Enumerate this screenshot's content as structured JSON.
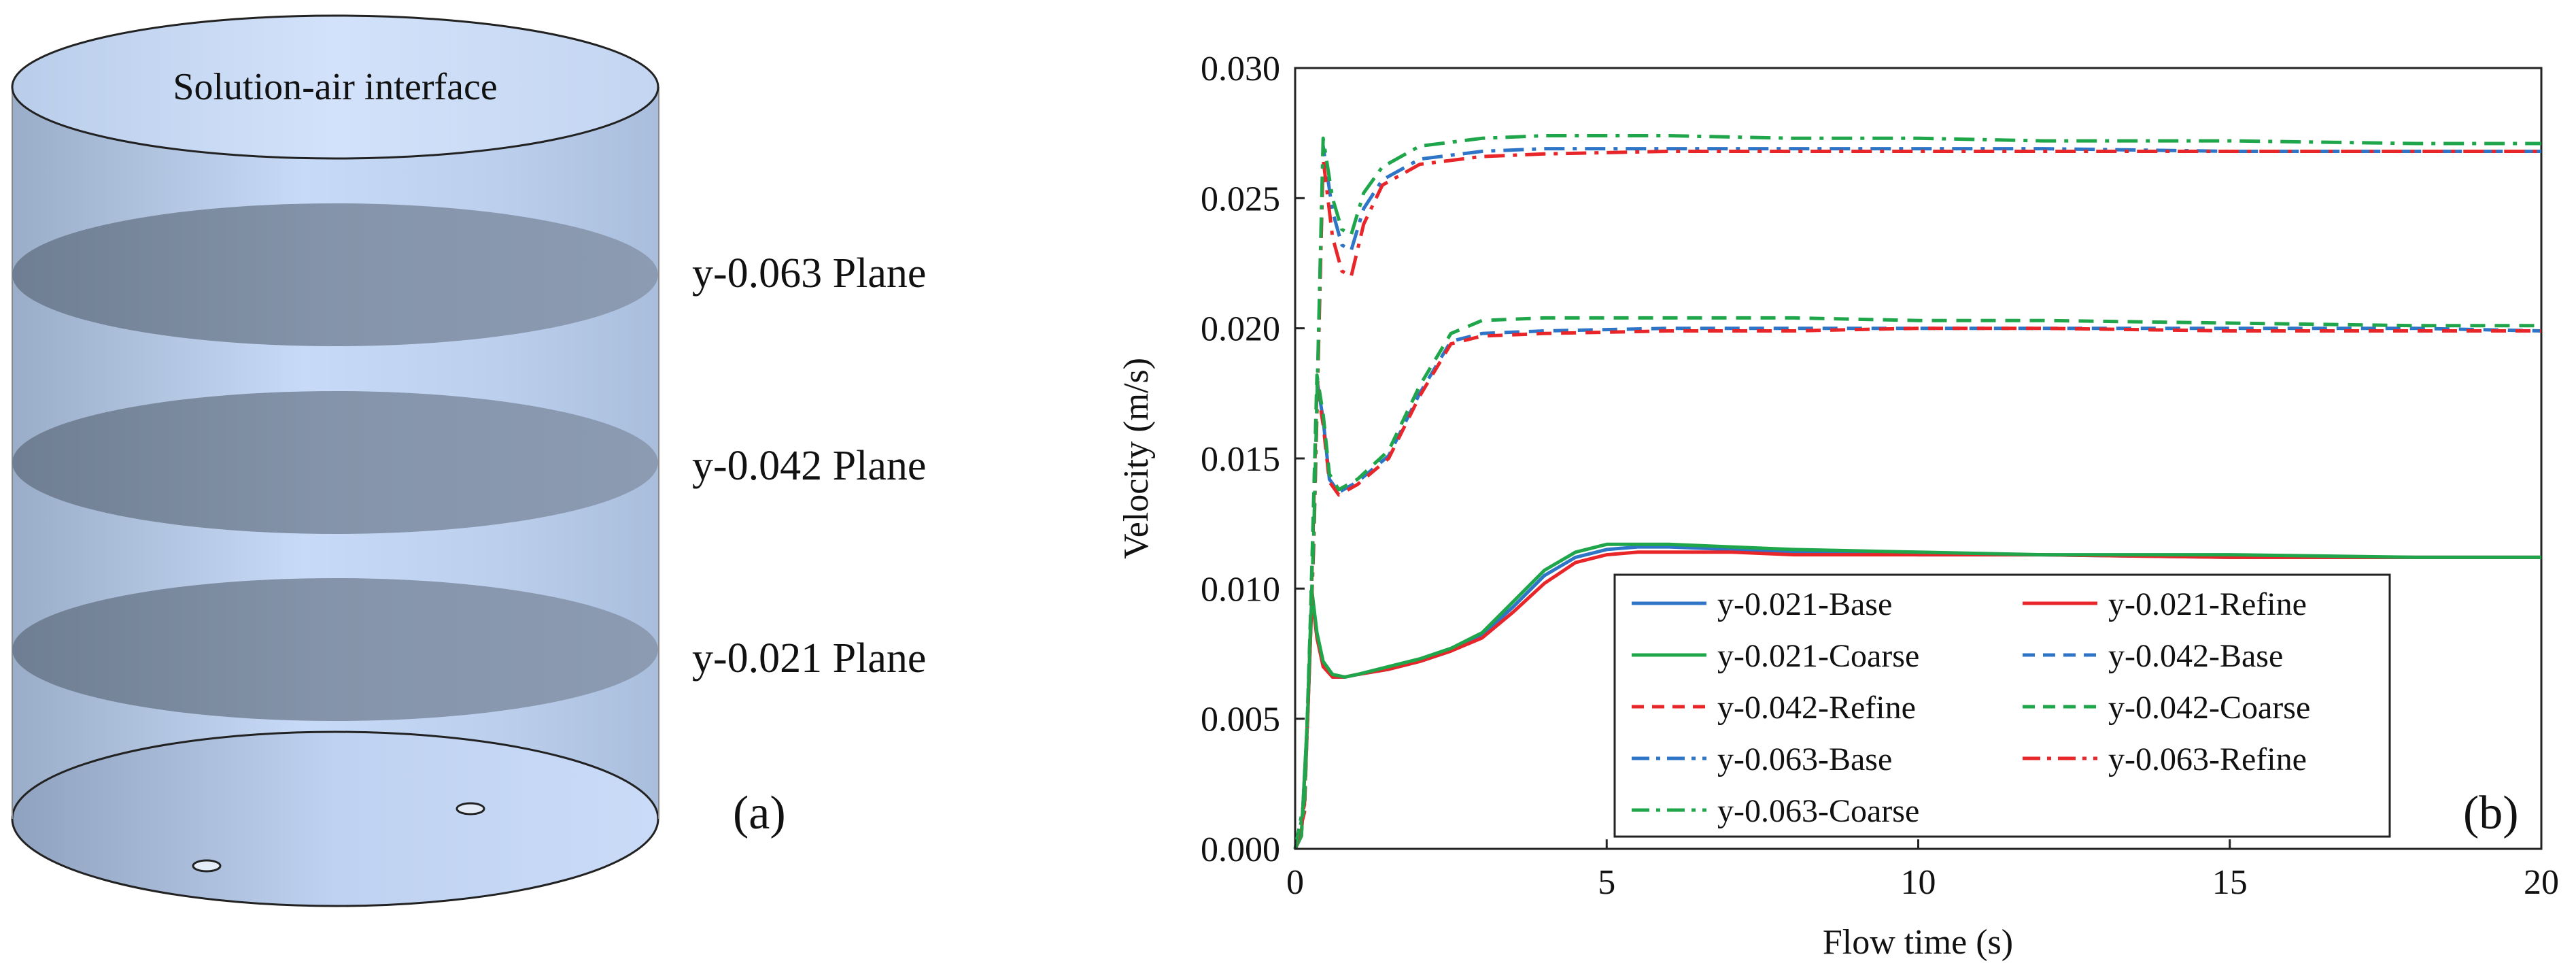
{
  "panel_a": {
    "interface_label": "Solution-air interface",
    "planes": [
      {
        "label": "y-0.063 Plane"
      },
      {
        "label": "y-0.042 Plane"
      },
      {
        "label": "y-0.021 Plane"
      }
    ],
    "panel_label": "(a)",
    "colors": {
      "cylinder_light": "#c9dcf8",
      "cylinder_mid": "#b3c8e6",
      "cylinder_edge": "#9fb3cf",
      "plane_fill": "#7f8fa3",
      "outline": "#222222"
    }
  },
  "chart_data": {
    "type": "line",
    "panel_label": "(b)",
    "xlabel": "Flow time (s)",
    "ylabel": "Velocity (m/s)",
    "xlim": [
      0,
      20
    ],
    "ylim": [
      0,
      0.03
    ],
    "xticks": [
      0,
      5,
      10,
      15,
      20
    ],
    "xtick_labels": [
      "0",
      "5",
      "10",
      "15",
      "20"
    ],
    "yticks": [
      0,
      0.005,
      0.01,
      0.015,
      0.02,
      0.025,
      0.03
    ],
    "ytick_labels": [
      "0.000",
      "0.005",
      "0.010",
      "0.015",
      "0.020",
      "0.025",
      "0.030"
    ],
    "grid": false,
    "legend_location": "lower-right",
    "series": [
      {
        "name": "y-0.021-Base",
        "color": "#2e75c8",
        "dash": "solid",
        "x": [
          0,
          0.1,
          0.2,
          0.27,
          0.35,
          0.45,
          0.6,
          0.8,
          1.0,
          1.5,
          2.0,
          2.5,
          3.0,
          3.5,
          4.0,
          4.5,
          5.0,
          5.5,
          6.0,
          7.0,
          8.0,
          10.0,
          12.0,
          15.0,
          18.0,
          20.0
        ],
        "values": [
          0,
          0.0005,
          0.005,
          0.0098,
          0.0082,
          0.0071,
          0.0066,
          0.0066,
          0.0067,
          0.0069,
          0.0072,
          0.0076,
          0.0082,
          0.0093,
          0.0105,
          0.0112,
          0.0115,
          0.0116,
          0.0116,
          0.0115,
          0.0114,
          0.0113,
          0.0113,
          0.0112,
          0.0112,
          0.0112
        ]
      },
      {
        "name": "y-0.021-Refine",
        "color": "#e8262a",
        "dash": "solid",
        "x": [
          0,
          0.1,
          0.2,
          0.27,
          0.35,
          0.45,
          0.6,
          0.8,
          1.0,
          1.5,
          2.0,
          2.5,
          3.0,
          3.5,
          4.0,
          4.5,
          5.0,
          5.5,
          6.0,
          7.0,
          8.0,
          10.0,
          12.0,
          15.0,
          18.0,
          20.0
        ],
        "values": [
          0,
          0.0005,
          0.0049,
          0.0097,
          0.0081,
          0.007,
          0.0066,
          0.0066,
          0.0067,
          0.0069,
          0.0072,
          0.0076,
          0.0081,
          0.0091,
          0.0102,
          0.011,
          0.0113,
          0.0114,
          0.0114,
          0.0114,
          0.0113,
          0.0113,
          0.0113,
          0.0112,
          0.0112,
          0.0112
        ]
      },
      {
        "name": "y-0.021-Coarse",
        "color": "#1fa64a",
        "dash": "solid",
        "x": [
          0,
          0.1,
          0.2,
          0.27,
          0.35,
          0.45,
          0.6,
          0.8,
          1.0,
          1.5,
          2.0,
          2.5,
          3.0,
          3.5,
          4.0,
          4.5,
          5.0,
          5.5,
          6.0,
          7.0,
          8.0,
          10.0,
          12.0,
          15.0,
          18.0,
          20.0
        ],
        "values": [
          0,
          0.0005,
          0.0051,
          0.0099,
          0.0083,
          0.0072,
          0.0067,
          0.0066,
          0.0067,
          0.007,
          0.0073,
          0.0077,
          0.0083,
          0.0095,
          0.0107,
          0.0114,
          0.0117,
          0.0117,
          0.0117,
          0.0116,
          0.0115,
          0.0114,
          0.0113,
          0.0113,
          0.0112,
          0.0112
        ]
      },
      {
        "name": "y-0.042-Base",
        "color": "#2e75c8",
        "dash": "dashed",
        "x": [
          0,
          0.15,
          0.25,
          0.35,
          0.45,
          0.55,
          0.7,
          1.0,
          1.5,
          2.0,
          2.5,
          3.0,
          4.0,
          6.0,
          8.0,
          10.0,
          12.0,
          15.0,
          18.0,
          20.0
        ],
        "values": [
          0,
          0.0015,
          0.009,
          0.018,
          0.0165,
          0.0142,
          0.0137,
          0.0141,
          0.0151,
          0.0175,
          0.0195,
          0.0198,
          0.0199,
          0.02,
          0.02,
          0.02,
          0.02,
          0.02,
          0.02,
          0.0199
        ]
      },
      {
        "name": "y-0.042-Refine",
        "color": "#e8262a",
        "dash": "dashed",
        "x": [
          0,
          0.15,
          0.25,
          0.35,
          0.45,
          0.55,
          0.7,
          1.0,
          1.5,
          2.0,
          2.5,
          3.0,
          4.0,
          6.0,
          8.0,
          10.0,
          12.0,
          15.0,
          18.0,
          20.0
        ],
        "values": [
          0,
          0.0014,
          0.0088,
          0.0178,
          0.0163,
          0.0141,
          0.0136,
          0.014,
          0.015,
          0.0174,
          0.0194,
          0.0197,
          0.0198,
          0.0199,
          0.0199,
          0.02,
          0.02,
          0.0199,
          0.0199,
          0.0199
        ]
      },
      {
        "name": "y-0.042-Coarse",
        "color": "#1fa64a",
        "dash": "dashed",
        "x": [
          0,
          0.15,
          0.25,
          0.35,
          0.45,
          0.55,
          0.7,
          1.0,
          1.5,
          2.0,
          2.5,
          3.0,
          4.0,
          6.0,
          8.0,
          10.0,
          12.0,
          15.0,
          18.0,
          20.0
        ],
        "values": [
          0,
          0.0016,
          0.0092,
          0.0182,
          0.0167,
          0.0144,
          0.0138,
          0.0142,
          0.0153,
          0.0178,
          0.0198,
          0.0203,
          0.0204,
          0.0204,
          0.0204,
          0.0203,
          0.0203,
          0.0202,
          0.0201,
          0.0201
        ]
      },
      {
        "name": "y-0.063-Base",
        "color": "#2e75c8",
        "dash": "dashdot",
        "x": [
          0,
          0.15,
          0.3,
          0.45,
          0.6,
          0.75,
          0.9,
          1.1,
          1.4,
          2.0,
          3.0,
          4.0,
          6.0,
          8.0,
          10.0,
          12.0,
          15.0,
          18.0,
          20.0
        ],
        "values": [
          0,
          0.0018,
          0.012,
          0.027,
          0.0245,
          0.0232,
          0.023,
          0.0246,
          0.0257,
          0.0265,
          0.0268,
          0.0269,
          0.0269,
          0.0269,
          0.0269,
          0.0269,
          0.0268,
          0.0268,
          0.0268
        ]
      },
      {
        "name": "y-0.063-Refine",
        "color": "#e8262a",
        "dash": "dashdot",
        "x": [
          0,
          0.15,
          0.3,
          0.45,
          0.6,
          0.75,
          0.9,
          1.1,
          1.4,
          2.0,
          3.0,
          4.0,
          6.0,
          8.0,
          10.0,
          12.0,
          15.0,
          18.0,
          20.0
        ],
        "values": [
          0,
          0.0017,
          0.0118,
          0.0265,
          0.0235,
          0.0222,
          0.022,
          0.024,
          0.0255,
          0.0263,
          0.0266,
          0.0267,
          0.0268,
          0.0268,
          0.0268,
          0.0268,
          0.0268,
          0.0268,
          0.0268
        ]
      },
      {
        "name": "y-0.063-Coarse",
        "color": "#1fa64a",
        "dash": "dashdot",
        "x": [
          0,
          0.15,
          0.3,
          0.45,
          0.6,
          0.75,
          0.9,
          1.1,
          1.4,
          2.0,
          3.0,
          4.0,
          6.0,
          8.0,
          10.0,
          12.0,
          15.0,
          18.0,
          20.0
        ],
        "values": [
          0,
          0.0019,
          0.0122,
          0.0273,
          0.025,
          0.0238,
          0.0236,
          0.0252,
          0.0262,
          0.027,
          0.0273,
          0.0274,
          0.0274,
          0.0273,
          0.0273,
          0.0272,
          0.0272,
          0.0271,
          0.0271
        ]
      }
    ]
  }
}
